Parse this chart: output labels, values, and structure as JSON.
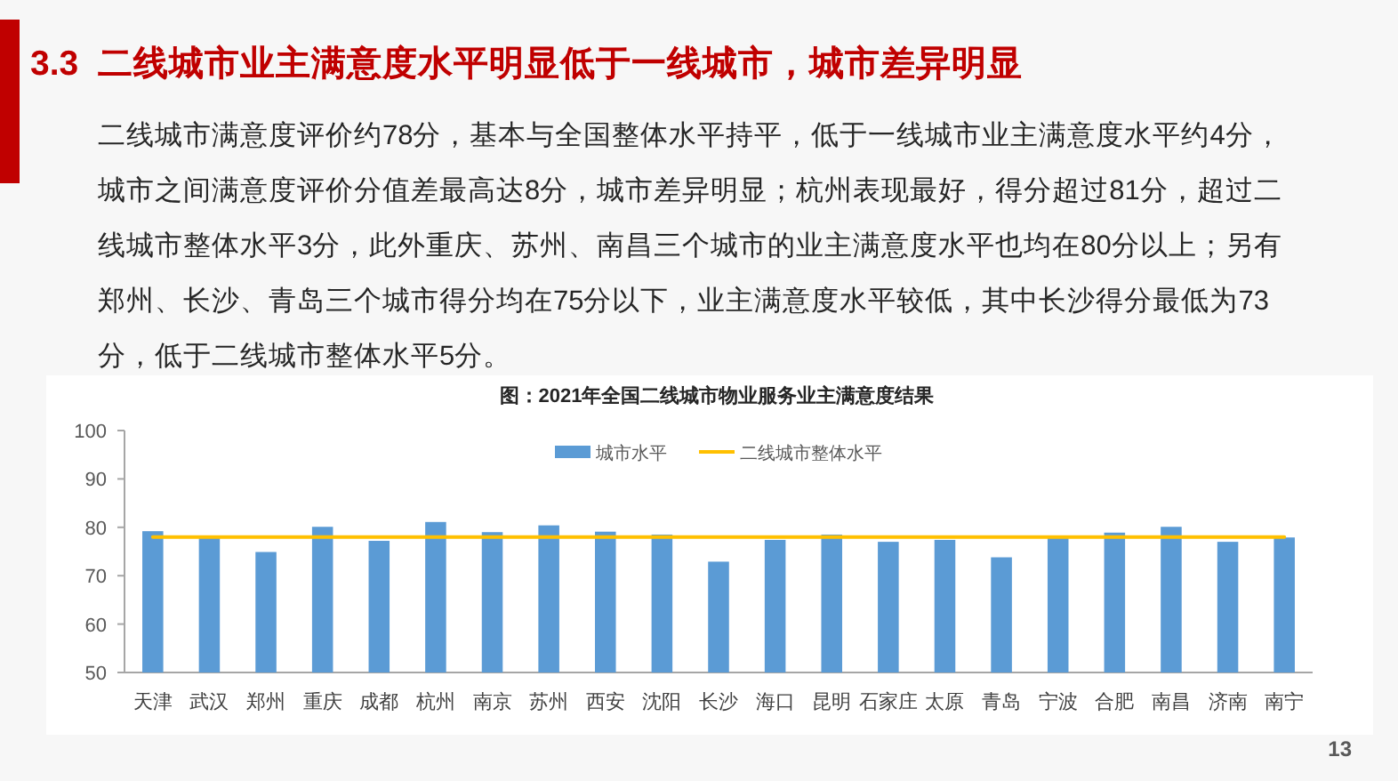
{
  "chart_data": {
    "type": "bar",
    "title": "3.3  二线城市业主满意度水平明显低于一线城市，城市差异明显",
    "subtitle": "二线城市满意度评价约78分，基本与全国整体水平持平，低于一线城市业主满意度水平约4分，城市之间满意度评价分值差最高达8分，城市差异明显；杭州表现最好，得分超过81分，超过二线城市整体水平3分，此外重庆、苏州、南昌三个城市的业主满意度水平也均在80分以上；另有郑州、长沙、青岛三个城市得分均在75分以下，业主满意度水平较低，其中长沙得分最低为73分，低于二线城市整体水平5分。",
    "annotations": [
      "图：2021年全国二线城市物业服务业主满意度结果",
      "13"
    ],
    "categories": [
      "天津",
      "武汉",
      "郑州",
      "重庆",
      "成都",
      "杭州",
      "南京",
      "苏州",
      "西安",
      "沈阳",
      "长沙",
      "海口",
      "昆明",
      "石家庄",
      "太原",
      "青岛",
      "宁波",
      "合肥",
      "南昌",
      "济南",
      "南宁"
    ],
    "series": [
      {
        "name": "城市水平",
        "color": "#5b9bd5",
        "values": [
          79.2,
          77.9,
          74.9,
          80.1,
          77.2,
          81.1,
          79.0,
          80.4,
          79.1,
          78.5,
          72.9,
          77.4,
          78.5,
          77.0,
          77.4,
          73.8,
          77.8,
          78.9,
          80.1,
          77.0,
          77.9
        ]
      },
      {
        "name": "二线城市整体水平",
        "type": "line",
        "color": "#ffc000",
        "values": [
          78,
          78,
          78,
          78,
          78,
          78,
          78,
          78,
          78,
          78,
          78,
          78,
          78,
          78,
          78,
          78,
          78,
          78,
          78,
          78,
          78
        ]
      }
    ],
    "ylim": [
      50,
      100
    ],
    "yticks": [
      50,
      60,
      70,
      80,
      90,
      100
    ],
    "grid": false,
    "legend": "top"
  }
}
